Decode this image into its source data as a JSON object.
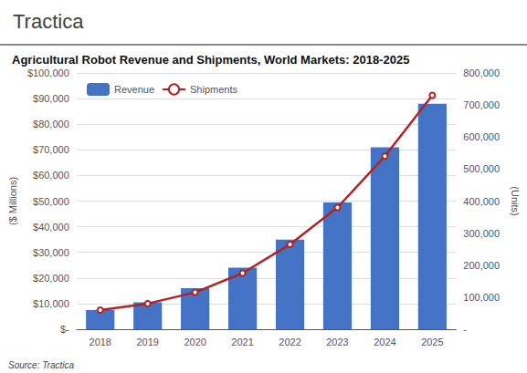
{
  "chart_data": {
    "type": "bar",
    "title": "Agricultural Robot Revenue and Shipments, World Markets: 2018-2025",
    "categories": [
      "2018",
      "2019",
      "2020",
      "2021",
      "2022",
      "2023",
      "2024",
      "2025"
    ],
    "series": [
      {
        "name": "Revenue",
        "type": "bar",
        "color": "#4472C4",
        "values": [
          7500,
          10500,
          16000,
          24000,
          35000,
          49500,
          71000,
          88000
        ]
      },
      {
        "name": "Shipments",
        "type": "line",
        "color": "#B22222",
        "axis": "y2",
        "values": [
          60000,
          80000,
          115000,
          175000,
          265000,
          380000,
          540000,
          730000
        ]
      }
    ],
    "ylabel": "($ Millions)",
    "y2label": "(Units)",
    "ylim": [
      0,
      100000
    ],
    "yticks": [
      {
        "value": 0,
        "label": "$-"
      },
      {
        "value": 10000,
        "label": "$10,000"
      },
      {
        "value": 20000,
        "label": "$20,000"
      },
      {
        "value": 30000,
        "label": "$30,000"
      },
      {
        "value": 40000,
        "label": "$40,000"
      },
      {
        "value": 50000,
        "label": "$50,000"
      },
      {
        "value": 60000,
        "label": "$60,000"
      },
      {
        "value": 70000,
        "label": "$70,000"
      },
      {
        "value": 80000,
        "label": "$80,000"
      },
      {
        "value": 90000,
        "label": "$90,000"
      },
      {
        "value": 100000,
        "label": "$100,000"
      }
    ],
    "y2lim": [
      0,
      800000
    ],
    "y2ticks": [
      {
        "value": 0,
        "label": "-"
      },
      {
        "value": 100000,
        "label": "100,000"
      },
      {
        "value": 200000,
        "label": "200,000"
      },
      {
        "value": 300000,
        "label": "300,000"
      },
      {
        "value": 400000,
        "label": "400,000"
      },
      {
        "value": 500000,
        "label": "500,000"
      },
      {
        "value": 600000,
        "label": "600,000"
      },
      {
        "value": 700000,
        "label": "700,000"
      },
      {
        "value": 800000,
        "label": "800,000"
      }
    ],
    "grid": true,
    "legend": "upper left",
    "annotations": [
      "Tractica",
      "Source: Tractica"
    ]
  }
}
